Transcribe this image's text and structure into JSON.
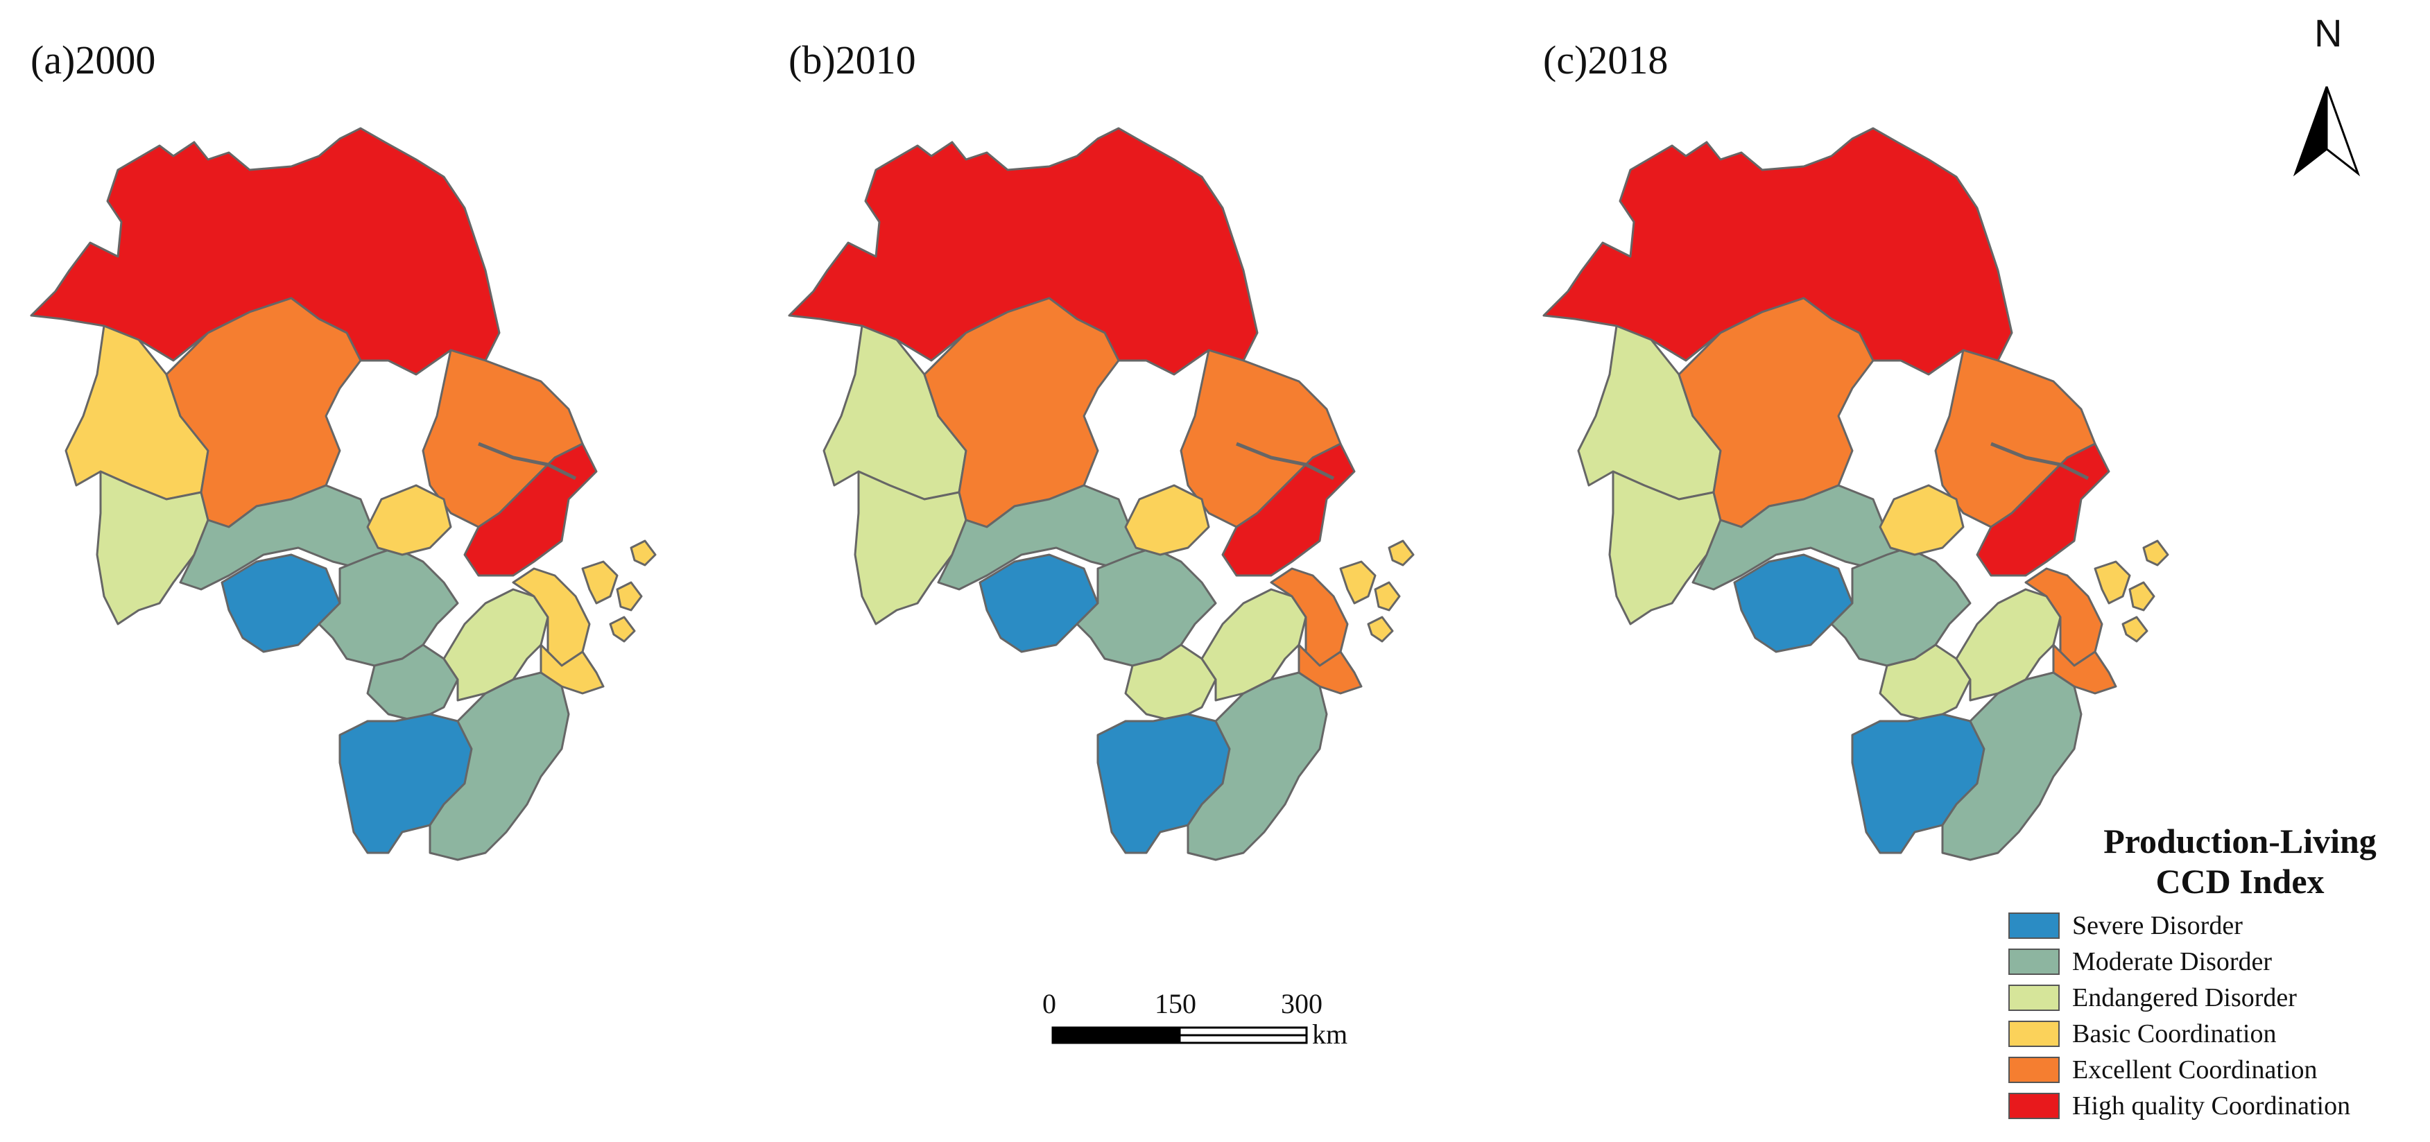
{
  "panels": [
    {
      "label": "(a)2000",
      "classes": {
        "north": "high",
        "west": "basic",
        "southwest": "endangered",
        "center": "excellent",
        "east": "excellent",
        "coast": "high",
        "anhui_south": "moderate",
        "zhejiang_west": "severe",
        "zhejiang_center": "moderate",
        "zhejiang_mid": "moderate",
        "zhejiang_south": "severe",
        "zhejiang_se": "moderate",
        "zhejiang_ne_a": "endangered",
        "zhejiang_ne_b": "basic",
        "zhejiang_ne_c": "basic",
        "islands": "basic",
        "shanghai_band": "basic"
      }
    },
    {
      "label": "(b)2010",
      "classes": {
        "north": "high",
        "west": "endangered",
        "southwest": "endangered",
        "center": "excellent",
        "east": "excellent",
        "coast": "high",
        "anhui_south": "moderate",
        "zhejiang_west": "severe",
        "zhejiang_center": "moderate",
        "zhejiang_mid": "endangered",
        "zhejiang_south": "severe",
        "zhejiang_se": "moderate",
        "zhejiang_ne_a": "endangered",
        "zhejiang_ne_b": "excellent",
        "zhejiang_ne_c": "excellent",
        "islands": "basic",
        "shanghai_band": "basic"
      }
    },
    {
      "label": "(c)2018",
      "classes": {
        "north": "high",
        "west": "endangered",
        "southwest": "endangered",
        "center": "excellent",
        "east": "excellent",
        "coast": "high",
        "anhui_south": "moderate",
        "zhejiang_west": "severe",
        "zhejiang_center": "moderate",
        "zhejiang_mid": "endangered",
        "zhejiang_south": "severe",
        "zhejiang_se": "moderate",
        "zhejiang_ne_a": "endangered",
        "zhejiang_ne_b": "excellent",
        "zhejiang_ne_c": "excellent",
        "islands": "basic",
        "shanghai_band": "basic"
      }
    }
  ],
  "legend": {
    "title_line1": "Production-Living",
    "title_line2": "CCD Index",
    "items": [
      {
        "key": "severe",
        "label": "Severe Disorder",
        "color": "#2b8cc4"
      },
      {
        "key": "moderate",
        "label": "Moderate Disorder",
        "color": "#8db5a0"
      },
      {
        "key": "endangered",
        "label": "Endangered Disorder",
        "color": "#d6e59a"
      },
      {
        "key": "basic",
        "label": "Basic Coordination",
        "color": "#fbd25a"
      },
      {
        "key": "excellent",
        "label": "Excellent Coordination",
        "color": "#f57e30"
      },
      {
        "key": "high",
        "label": "High quality Coordination",
        "color": "#e8191c"
      }
    ]
  },
  "scale_bar": {
    "ticks": [
      "0",
      "150",
      "300"
    ],
    "unit": "km"
  },
  "north_arrow": {
    "letter": "N",
    "icon": "north-arrow-icon"
  },
  "colors": {
    "boundary": "#666666",
    "background": "#ffffff"
  }
}
